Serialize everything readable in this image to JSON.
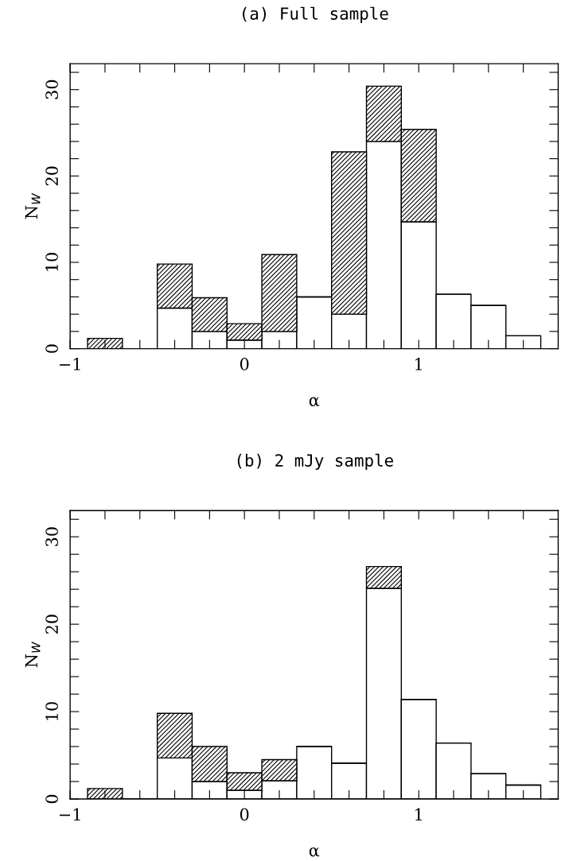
{
  "chart_data": [
    {
      "type": "bar",
      "title": "(a) Full sample",
      "xlabel": "α",
      "ylabel": "N$_{W}$",
      "stacked": true,
      "grid": false,
      "legend": false,
      "x": [
        -0.8,
        -0.6,
        -0.4,
        -0.2,
        0,
        0.2,
        0.4,
        0.6,
        0.8,
        1.0,
        1.2,
        1.4,
        1.6
      ],
      "series": [
        {
          "color": "#ffffff",
          "values": [
            0,
            0,
            4.7,
            2.0,
            1.0,
            2.0,
            6.0,
            4.0,
            24.0,
            14.7,
            6.3,
            5.0,
            1.5
          ]
        },
        {
          "color": "#000000",
          "values": [
            1.2,
            0,
            5.1,
            3.9,
            1.9,
            8.9,
            0,
            18.8,
            6.4,
            10.7,
            0,
            0,
            0
          ]
        }
      ],
      "xlim": [
        -1,
        1.8
      ],
      "ylim": [
        0,
        33
      ],
      "xticks": [
        {
          "value": -1,
          "label": "−1"
        },
        {
          "value": -0.8,
          "label": null
        },
        {
          "value": -0.6,
          "label": null
        },
        {
          "value": -0.4,
          "label": null
        },
        {
          "value": -0.2,
          "label": null
        },
        0,
        {
          "value": 0.2,
          "label": null
        },
        {
          "value": 0.4,
          "label": null
        },
        {
          "value": 0.6,
          "label": null
        },
        {
          "value": 0.8,
          "label": null
        },
        1,
        {
          "value": 1.2,
          "label": null
        },
        {
          "value": 1.4,
          "label": null
        },
        {
          "value": 1.6,
          "label": null
        }
      ],
      "yticks": [
        0,
        {
          "value": 2,
          "label": null
        },
        {
          "value": 4,
          "label": null
        },
        {
          "value": 6,
          "label": null
        },
        {
          "value": 8,
          "label": null
        },
        10,
        {
          "value": 12,
          "label": null
        },
        {
          "value": 14,
          "label": null
        },
        {
          "value": 16,
          "label": null
        },
        {
          "value": 18,
          "label": null
        },
        20,
        {
          "value": 22,
          "label": null
        },
        {
          "value": 24,
          "label": null
        },
        {
          "value": 26,
          "label": null
        },
        {
          "value": 28,
          "label": null
        },
        30,
        {
          "value": 32,
          "label": null
        }
      ]
    },
    {
      "type": "bar",
      "title": "(b) 2 mJy sample",
      "xlabel": "α",
      "ylabel": "N$_{W}$",
      "stacked": true,
      "grid": false,
      "legend": false,
      "x": [
        -0.8,
        -0.6,
        -0.4,
        -0.2,
        0,
        0.2,
        0.4,
        0.6,
        0.8,
        1.0,
        1.2,
        1.4,
        1.6
      ],
      "series": [
        {
          "color": "#ffffff",
          "values": [
            0,
            0,
            4.7,
            2.0,
            1.0,
            2.1,
            6.0,
            4.1,
            24.1,
            11.4,
            6.4,
            2.9,
            1.6
          ]
        },
        {
          "color": "#000000",
          "values": [
            1.2,
            0,
            5.1,
            4.0,
            2.0,
            2.4,
            0,
            0,
            2.5,
            0,
            0,
            0,
            0
          ]
        }
      ],
      "xlim": [
        -1,
        1.8
      ],
      "ylim": [
        0,
        33
      ],
      "xticks": [
        {
          "value": -1,
          "label": "−1"
        },
        {
          "value": -0.8,
          "label": null
        },
        {
          "value": -0.6,
          "label": null
        },
        {
          "value": -0.4,
          "label": null
        },
        {
          "value": -0.2,
          "label": null
        },
        0,
        {
          "value": 0.2,
          "label": null
        },
        {
          "value": 0.4,
          "label": null
        },
        {
          "value": 0.6,
          "label": null
        },
        {
          "value": 0.8,
          "label": null
        },
        1,
        {
          "value": 1.2,
          "label": null
        },
        {
          "value": 1.4,
          "label": null
        },
        {
          "value": 1.6,
          "label": null
        }
      ],
      "yticks": [
        0,
        {
          "value": 2,
          "label": null
        },
        {
          "value": 4,
          "label": null
        },
        {
          "value": 6,
          "label": null
        },
        {
          "value": 8,
          "label": null
        },
        10,
        {
          "value": 12,
          "label": null
        },
        {
          "value": 14,
          "label": null
        },
        {
          "value": 16,
          "label": null
        },
        {
          "value": 18,
          "label": null
        },
        20,
        {
          "value": 22,
          "label": null
        },
        {
          "value": 24,
          "label": null
        },
        {
          "value": 26,
          "label": null
        },
        {
          "value": 28,
          "label": null
        },
        30,
        {
          "value": 32,
          "label": null
        }
      ]
    }
  ]
}
